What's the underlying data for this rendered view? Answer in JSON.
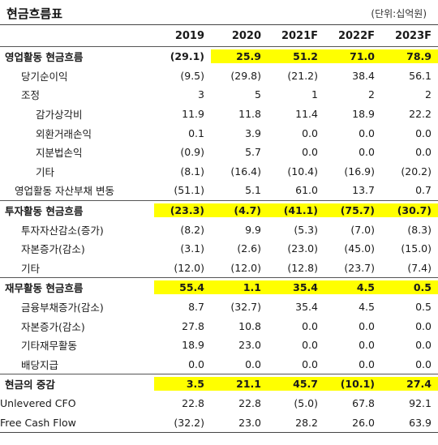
{
  "title": "현금흐름표",
  "unit": "(단위:십억원)",
  "columns": [
    "2019",
    "2020",
    "2021F",
    "2022F",
    "2023F"
  ],
  "rows": [
    {
      "label": "영업활동 현금흐름",
      "values": [
        "(29.1)",
        "25.9",
        "51.2",
        "71.0",
        "78.9"
      ],
      "style": "major",
      "highlight": [
        1,
        2,
        3,
        4
      ],
      "sep": true
    },
    {
      "label": "당기순이익",
      "values": [
        "(9.5)",
        "(29.8)",
        "(21.2)",
        "38.4",
        "56.1"
      ],
      "style": "lvl1"
    },
    {
      "label": "조정",
      "values": [
        "3",
        "5",
        "1",
        "2",
        "2"
      ],
      "style": "lvl1"
    },
    {
      "label": "감가상각비",
      "values": [
        "11.9",
        "11.8",
        "11.4",
        "18.9",
        "22.2"
      ],
      "style": "lvl2"
    },
    {
      "label": "외환거래손익",
      "values": [
        "0.1",
        "3.9",
        "0.0",
        "0.0",
        "0.0"
      ],
      "style": "lvl2"
    },
    {
      "label": "지분법손익",
      "values": [
        "(0.9)",
        "5.7",
        "0.0",
        "0.0",
        "0.0"
      ],
      "style": "lvl2"
    },
    {
      "label": "기타",
      "values": [
        "(8.1)",
        "(16.4)",
        "(10.4)",
        "(16.9)",
        "(20.2)"
      ],
      "style": "lvl2"
    },
    {
      "label": "영업활동 자산부채 변동",
      "values": [
        "(51.1)",
        "5.1",
        "61.0",
        "13.7",
        "0.7"
      ],
      "style": "lvl1b"
    },
    {
      "label": "투자활동 현금흐름",
      "values": [
        "(23.3)",
        "(4.7)",
        "(41.1)",
        "(75.7)",
        "(30.7)"
      ],
      "style": "major",
      "highlight": [
        0,
        1,
        2,
        3,
        4
      ],
      "sep": true
    },
    {
      "label": "투자자산감소(증가)",
      "values": [
        "(8.2)",
        "9.9",
        "(5.3)",
        "(7.0)",
        "(8.3)"
      ],
      "style": "lvl1"
    },
    {
      "label": "자본증가(감소)",
      "values": [
        "(3.1)",
        "(2.6)",
        "(23.0)",
        "(45.0)",
        "(15.0)"
      ],
      "style": "lvl1"
    },
    {
      "label": "기타",
      "values": [
        "(12.0)",
        "(12.0)",
        "(12.8)",
        "(23.7)",
        "(7.4)"
      ],
      "style": "lvl1"
    },
    {
      "label": "재무활동 현금흐름",
      "values": [
        "55.4",
        "1.1",
        "35.4",
        "4.5",
        "0.5"
      ],
      "style": "major",
      "highlight": [
        0,
        1,
        2,
        3,
        4
      ],
      "sep": true
    },
    {
      "label": "금융부채증가(감소)",
      "values": [
        "8.7",
        "(32.7)",
        "35.4",
        "4.5",
        "0.5"
      ],
      "style": "lvl1"
    },
    {
      "label": "자본증가(감소)",
      "values": [
        "27.8",
        "10.8",
        "0.0",
        "0.0",
        "0.0"
      ],
      "style": "lvl1"
    },
    {
      "label": "기타재무활동",
      "values": [
        "18.9",
        "23.0",
        "0.0",
        "0.0",
        "0.0"
      ],
      "style": "lvl1"
    },
    {
      "label": "배당지급",
      "values": [
        "0.0",
        "0.0",
        "0.0",
        "0.0",
        "0.0"
      ],
      "style": "lvl1"
    },
    {
      "label": "현금의 중감",
      "values": [
        "3.5",
        "21.1",
        "45.7",
        "(10.1)",
        "27.4"
      ],
      "style": "major",
      "highlight": [
        0,
        1,
        2,
        3,
        4
      ],
      "sep": true
    },
    {
      "label": "Unlevered CFO",
      "values": [
        "22.8",
        "22.8",
        "(5.0)",
        "67.8",
        "92.1"
      ],
      "style": "lvl0"
    },
    {
      "label": "Free Cash Flow",
      "values": [
        "(32.2)",
        "23.0",
        "28.2",
        "26.0",
        "63.9"
      ],
      "style": "lvl0",
      "last": true
    }
  ],
  "colors": {
    "highlight": "#ffff00",
    "rule": "#444444"
  }
}
